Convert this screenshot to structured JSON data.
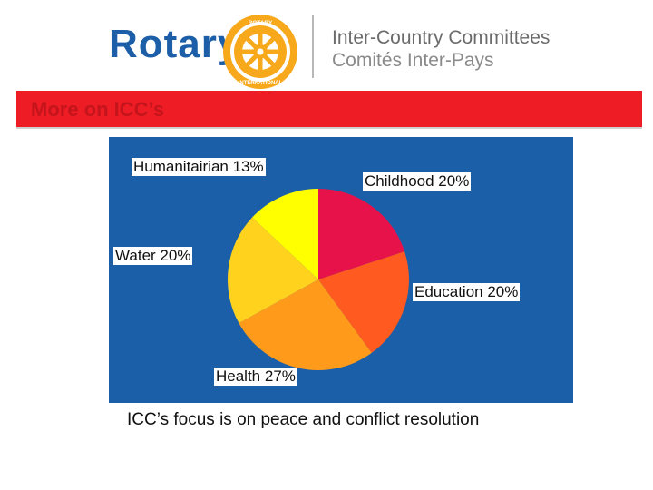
{
  "header": {
    "brand": "Rotary",
    "wheel_text_top": "ROTARY",
    "wheel_text_bottom": "INTERNATIONAL",
    "title_en": "Inter-Country Committees",
    "title_fr": "Comités Inter-Pays"
  },
  "banner": {
    "text": "More on ICC’s"
  },
  "caption": "ICC’s focus is on peace and conflict resolution",
  "colors": {
    "brand_blue": "#1c5ea8",
    "banner_red": "#ee1c24",
    "panel_blue": "#1b5fa8"
  },
  "chart_data": {
    "type": "pie",
    "slices": [
      {
        "label": "Childhood 20%",
        "value": 20,
        "color": "#e8124a"
      },
      {
        "label": "Education 20%",
        "value": 20,
        "color": "#ff5a1f"
      },
      {
        "label": "Health 27%",
        "value": 27,
        "color": "#ff9a1a"
      },
      {
        "label": "Water 20%",
        "value": 20,
        "color": "#ffd21e"
      },
      {
        "label": "Humanitairian 13%",
        "value": 13,
        "color": "#ffff00"
      }
    ]
  }
}
